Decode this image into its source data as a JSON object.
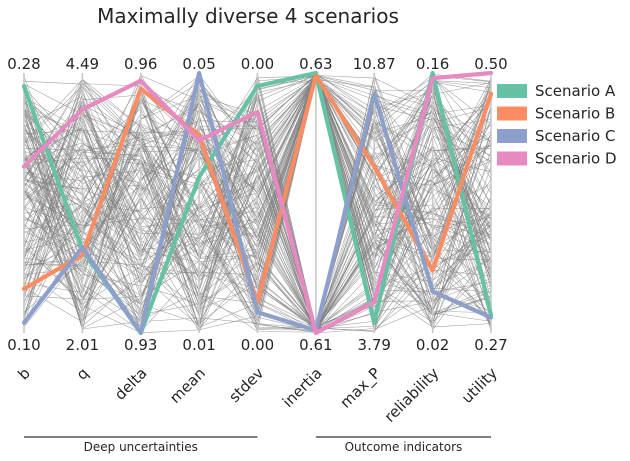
{
  "chart_data": {
    "type": "parallel_coordinates",
    "title": "Maximally diverse 4 scenarios",
    "axes": [
      {
        "name": "b",
        "max": "0.28",
        "min": "0.10",
        "min_value": 0.1,
        "max_value": 0.28
      },
      {
        "name": "q",
        "max": "4.49",
        "min": "2.01",
        "min_value": 2.01,
        "max_value": 4.49
      },
      {
        "name": "delta",
        "max": "0.96",
        "min": "0.93",
        "min_value": 0.93,
        "max_value": 0.96
      },
      {
        "name": "mean",
        "max": "0.05",
        "min": "0.01",
        "min_value": 0.01,
        "max_value": 0.05
      },
      {
        "name": "stdev",
        "max": "0.00",
        "min": "0.00",
        "min_value": 0.0,
        "max_value": 0.0
      },
      {
        "name": "inertia",
        "max": "0.63",
        "min": "0.61",
        "min_value": 0.61,
        "max_value": 0.63
      },
      {
        "name": "max_P",
        "max": "10.87",
        "min": "3.79",
        "min_value": 3.79,
        "max_value": 10.87
      },
      {
        "name": "reliability",
        "max": "0.16",
        "min": "0.02",
        "min_value": 0.02,
        "max_value": 0.16
      },
      {
        "name": "utility",
        "max": "0.50",
        "min": "0.27",
        "min_value": 0.27,
        "max_value": 0.5
      }
    ],
    "groups": [
      {
        "label": "Deep uncertainties",
        "first_axis": 0,
        "last_axis": 4
      },
      {
        "label": "Outcome indicators",
        "first_axis": 5,
        "last_axis": 8
      }
    ],
    "series": [
      {
        "name": "Scenario A",
        "color": "#66c2a5",
        "values": [
          0.95,
          0.32,
          0.0,
          0.6,
          0.95,
          1.0,
          0.04,
          1.0,
          0.07
        ]
      },
      {
        "name": "Scenario B",
        "color": "#fc8d62",
        "values": [
          0.17,
          0.3,
          0.94,
          0.76,
          0.12,
          0.99,
          0.64,
          0.24,
          0.92
        ]
      },
      {
        "name": "Scenario C",
        "color": "#8da0cb",
        "values": [
          0.04,
          0.33,
          0.0,
          1.0,
          0.08,
          0.01,
          0.92,
          0.16,
          0.06
        ]
      },
      {
        "name": "Scenario D",
        "color": "#e78ac3",
        "values": [
          0.64,
          0.86,
          0.97,
          0.74,
          0.85,
          0.0,
          0.12,
          0.98,
          1.0
        ]
      }
    ],
    "background_color": "#808080",
    "legend_position": "right"
  }
}
